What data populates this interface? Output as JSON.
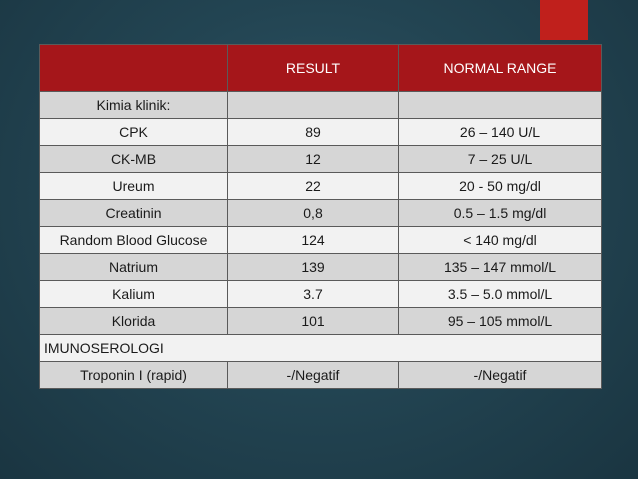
{
  "table": {
    "headers": [
      "",
      "RESULT",
      "NORMAL RANGE"
    ],
    "rows": [
      {
        "label": "Kimia klinik:",
        "result": "",
        "range": ""
      },
      {
        "label": "CPK",
        "result": "89",
        "range": "26 – 140 U/L"
      },
      {
        "label": "CK-MB",
        "result": "12",
        "range": "7 – 25 U/L"
      },
      {
        "label": "Ureum",
        "result": "22",
        "range": "20 - 50 mg/dl"
      },
      {
        "label": "Creatinin",
        "result": "0,8",
        "range": "0.5 – 1.5 mg/dl"
      },
      {
        "label": "Random Blood Glucose",
        "result": "124",
        "range": "< 140 mg/dl"
      },
      {
        "label": "Natrium",
        "result": "139",
        "range": "135 – 147 mmol/L"
      },
      {
        "label": "Kalium",
        "result": "3.7",
        "range": "3.5 – 5.0 mmol/L"
      },
      {
        "label": "Klorida",
        "result": "101",
        "range": "95 – 105 mmol/L"
      }
    ],
    "section": "IMUNOSEROLOGI",
    "last_row": {
      "label": "Troponin I (rapid)",
      "result": "-/Negatif",
      "range": "-/Negatif"
    }
  },
  "colors": {
    "header_bg": "#a5161a",
    "accent": "#c0201c",
    "background": "#234553"
  }
}
